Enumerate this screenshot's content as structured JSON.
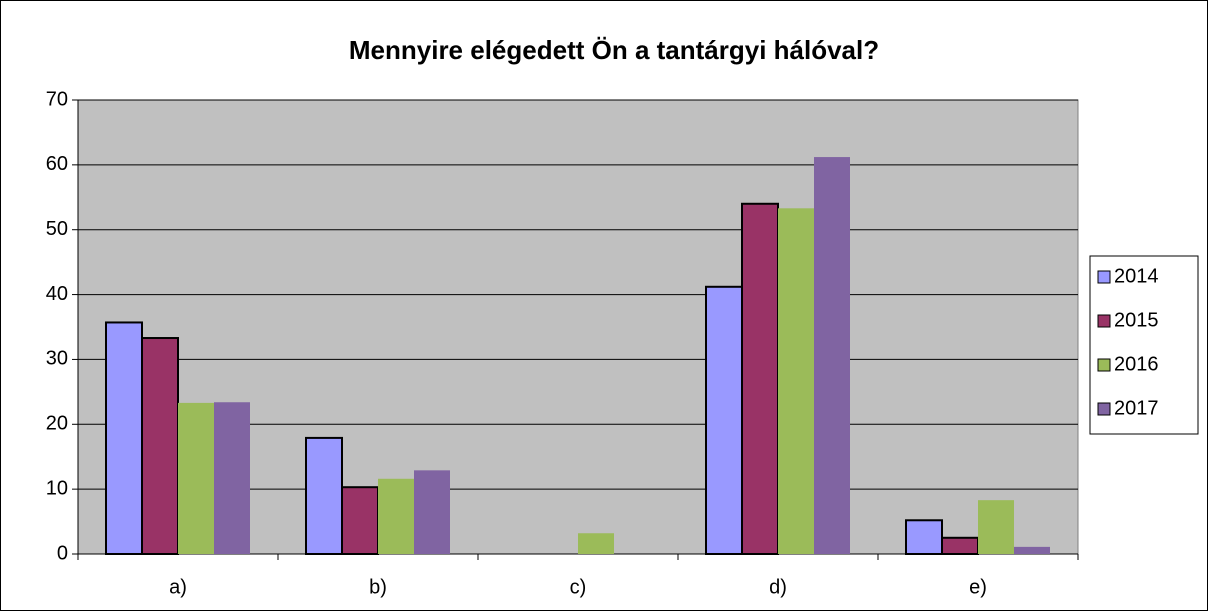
{
  "chart_data": {
    "type": "bar",
    "title": "Mennyire elégedett Ön a tantárgyi hálóval?",
    "categories": [
      "a)",
      "b)",
      "c)",
      "d)",
      "e)"
    ],
    "series": [
      {
        "name": "2014",
        "color": "#9999ff",
        "edgecolor": "#000000",
        "values": [
          35.7,
          17.9,
          0,
          41.2,
          5.2
        ]
      },
      {
        "name": "2015",
        "color": "#993366",
        "edgecolor": "#000000",
        "values": [
          33.3,
          10.3,
          0,
          54,
          2.5
        ]
      },
      {
        "name": "2016",
        "color": "#9bbb59",
        "values": [
          23.3,
          11.6,
          3.2,
          53.3,
          8.3
        ]
      },
      {
        "name": "2017",
        "color": "#8064a2",
        "values": [
          23.4,
          12.9,
          0,
          61.2,
          1.1
        ]
      }
    ],
    "ylim": [
      0,
      70
    ],
    "yticks": [
      0,
      10,
      20,
      30,
      40,
      50,
      60,
      70
    ],
    "grid": true,
    "legend": "right"
  }
}
